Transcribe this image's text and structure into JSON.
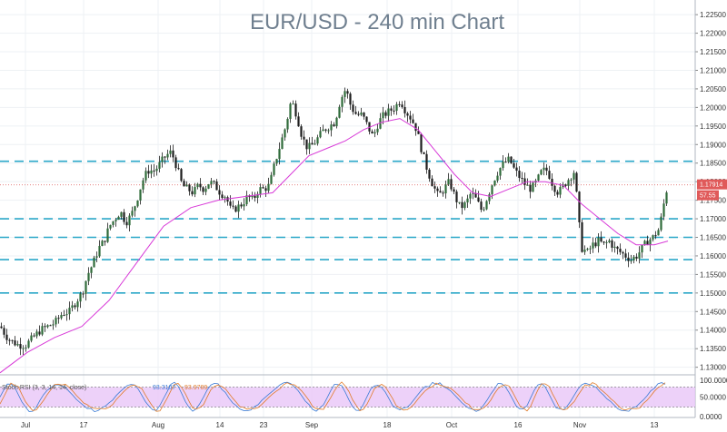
{
  "chart_data": {
    "type": "candlestick",
    "title": "EUR/USD - 240 min Chart",
    "instrument": "EUR/USD",
    "y_ticks": [
      "1.22500",
      "1.22000",
      "1.21500",
      "1.21000",
      "1.20500",
      "1.20000",
      "1.19500",
      "1.19000",
      "1.18500",
      "1.18000",
      "1.17500",
      "1.17000",
      "1.16500",
      "1.16000",
      "1.15500",
      "1.15000",
      "1.14500",
      "1.14000",
      "1.13500",
      "1.13000"
    ],
    "ylim": [
      1.1282,
      1.2265
    ],
    "x_ticks": [
      "Jul",
      "17",
      "Aug",
      "14",
      "23",
      "Sep",
      "18",
      "Oct",
      "16",
      "Nov",
      "13"
    ],
    "last_price": "1.17914",
    "last_price_value": 1.17914,
    "secondary_tag": "57.55",
    "horizontal_levels": [
      1.1855,
      1.17,
      1.165,
      1.159,
      1.15
    ],
    "level_color": "#2aa7c8",
    "price_path": [
      [
        0,
        1.141
      ],
      [
        6,
        1.1385
      ],
      [
        12,
        1.137
      ],
      [
        20,
        1.136
      ],
      [
        28,
        1.136
      ],
      [
        36,
        1.138
      ],
      [
        44,
        1.14
      ],
      [
        52,
        1.141
      ],
      [
        60,
        1.142
      ],
      [
        68,
        1.1445
      ],
      [
        76,
        1.145
      ],
      [
        84,
        1.148
      ],
      [
        90,
        1.15
      ],
      [
        96,
        1.155
      ],
      [
        102,
        1.158
      ],
      [
        108,
        1.162
      ],
      [
        114,
        1.164
      ],
      [
        120,
        1.168
      ],
      [
        126,
        1.17
      ],
      [
        132,
        1.172
      ],
      [
        138,
        1.169
      ],
      [
        144,
        1.171
      ],
      [
        150,
        1.175
      ],
      [
        156,
        1.18
      ],
      [
        162,
        1.183
      ],
      [
        170,
        1.183
      ],
      [
        176,
        1.185
      ],
      [
        182,
        1.187
      ],
      [
        188,
        1.188
      ],
      [
        194,
        1.184
      ],
      [
        200,
        1.179
      ],
      [
        206,
        1.178
      ],
      [
        212,
        1.177
      ],
      [
        218,
        1.179
      ],
      [
        224,
        1.178
      ],
      [
        230,
        1.18
      ],
      [
        236,
        1.179
      ],
      [
        242,
        1.177
      ],
      [
        248,
        1.176
      ],
      [
        254,
        1.172
      ],
      [
        260,
        1.173
      ],
      [
        266,
        1.174
      ],
      [
        272,
        1.176
      ],
      [
        278,
        1.175
      ],
      [
        284,
        1.178
      ],
      [
        290,
        1.178
      ],
      [
        296,
        1.179
      ],
      [
        302,
        1.185
      ],
      [
        308,
        1.19
      ],
      [
        314,
        1.195
      ],
      [
        320,
        1.202
      ],
      [
        326,
        1.198
      ],
      [
        332,
        1.192
      ],
      [
        338,
        1.189
      ],
      [
        344,
        1.19
      ],
      [
        350,
        1.192
      ],
      [
        356,
        1.194
      ],
      [
        362,
        1.195
      ],
      [
        368,
        1.196
      ],
      [
        374,
        1.202
      ],
      [
        380,
        1.205
      ],
      [
        386,
        1.2
      ],
      [
        392,
        1.198
      ],
      [
        398,
        1.198
      ],
      [
        404,
        1.195
      ],
      [
        410,
        1.192
      ],
      [
        416,
        1.196
      ],
      [
        422,
        1.198
      ],
      [
        428,
        1.199
      ],
      [
        434,
        1.2
      ],
      [
        440,
        1.202
      ],
      [
        446,
        1.199
      ],
      [
        452,
        1.197
      ],
      [
        458,
        1.194
      ],
      [
        464,
        1.188
      ],
      [
        470,
        1.183
      ],
      [
        476,
        1.179
      ],
      [
        482,
        1.176
      ],
      [
        488,
        1.178
      ],
      [
        494,
        1.18
      ],
      [
        500,
        1.176
      ],
      [
        506,
        1.173
      ],
      [
        512,
        1.174
      ],
      [
        518,
        1.177
      ],
      [
        524,
        1.175
      ],
      [
        530,
        1.172
      ],
      [
        536,
        1.176
      ],
      [
        542,
        1.18
      ],
      [
        548,
        1.183
      ],
      [
        554,
        1.185
      ],
      [
        560,
        1.186
      ],
      [
        566,
        1.183
      ],
      [
        572,
        1.181
      ],
      [
        578,
        1.179
      ],
      [
        584,
        1.178
      ],
      [
        590,
        1.18
      ],
      [
        596,
        1.183
      ],
      [
        602,
        1.183
      ],
      [
        608,
        1.179
      ],
      [
        614,
        1.177
      ],
      [
        620,
        1.179
      ],
      [
        626,
        1.181
      ],
      [
        632,
        1.183
      ],
      [
        636,
        1.17
      ],
      [
        640,
        1.162
      ],
      [
        646,
        1.161
      ],
      [
        652,
        1.163
      ],
      [
        658,
        1.164
      ],
      [
        664,
        1.163
      ],
      [
        670,
        1.164
      ],
      [
        676,
        1.162
      ],
      [
        682,
        1.161
      ],
      [
        688,
        1.16
      ],
      [
        694,
        1.159
      ],
      [
        700,
        1.16
      ],
      [
        706,
        1.162
      ],
      [
        712,
        1.164
      ],
      [
        718,
        1.165
      ],
      [
        724,
        1.167
      ],
      [
        728,
        1.171
      ],
      [
        732,
        1.177
      ],
      [
        735,
        1.179
      ]
    ],
    "moving_average": [
      [
        0,
        1.1285
      ],
      [
        30,
        1.134
      ],
      [
        60,
        1.138
      ],
      [
        90,
        1.141
      ],
      [
        120,
        1.148
      ],
      [
        150,
        1.158
      ],
      [
        180,
        1.168
      ],
      [
        210,
        1.173
      ],
      [
        240,
        1.175
      ],
      [
        270,
        1.176
      ],
      [
        300,
        1.177
      ],
      [
        320,
        1.182
      ],
      [
        340,
        1.187
      ],
      [
        360,
        1.189
      ],
      [
        380,
        1.191
      ],
      [
        400,
        1.194
      ],
      [
        420,
        1.196
      ],
      [
        440,
        1.197
      ],
      [
        460,
        1.194
      ],
      [
        480,
        1.188
      ],
      [
        500,
        1.182
      ],
      [
        520,
        1.177
      ],
      [
        540,
        1.176
      ],
      [
        560,
        1.178
      ],
      [
        580,
        1.18
      ],
      [
        600,
        1.18
      ],
      [
        620,
        1.179
      ],
      [
        640,
        1.174
      ],
      [
        660,
        1.17
      ],
      [
        680,
        1.166
      ],
      [
        700,
        1.163
      ],
      [
        720,
        1.163
      ],
      [
        735,
        1.164
      ]
    ],
    "candle_color": "#2f6b3a",
    "ma_color": "#d83ad8",
    "rsi": {
      "label": "Stoch RSI (3, 3, 14, 14, close)",
      "value1": "93.3107",
      "value2": "93.9789",
      "value1_color": "#3a7bd5",
      "value2_color": "#e07b2a",
      "levels": [
        "100.0000",
        "50.0000",
        "0.0000"
      ],
      "band_color": "#e9c6f7"
    },
    "grid": true
  }
}
